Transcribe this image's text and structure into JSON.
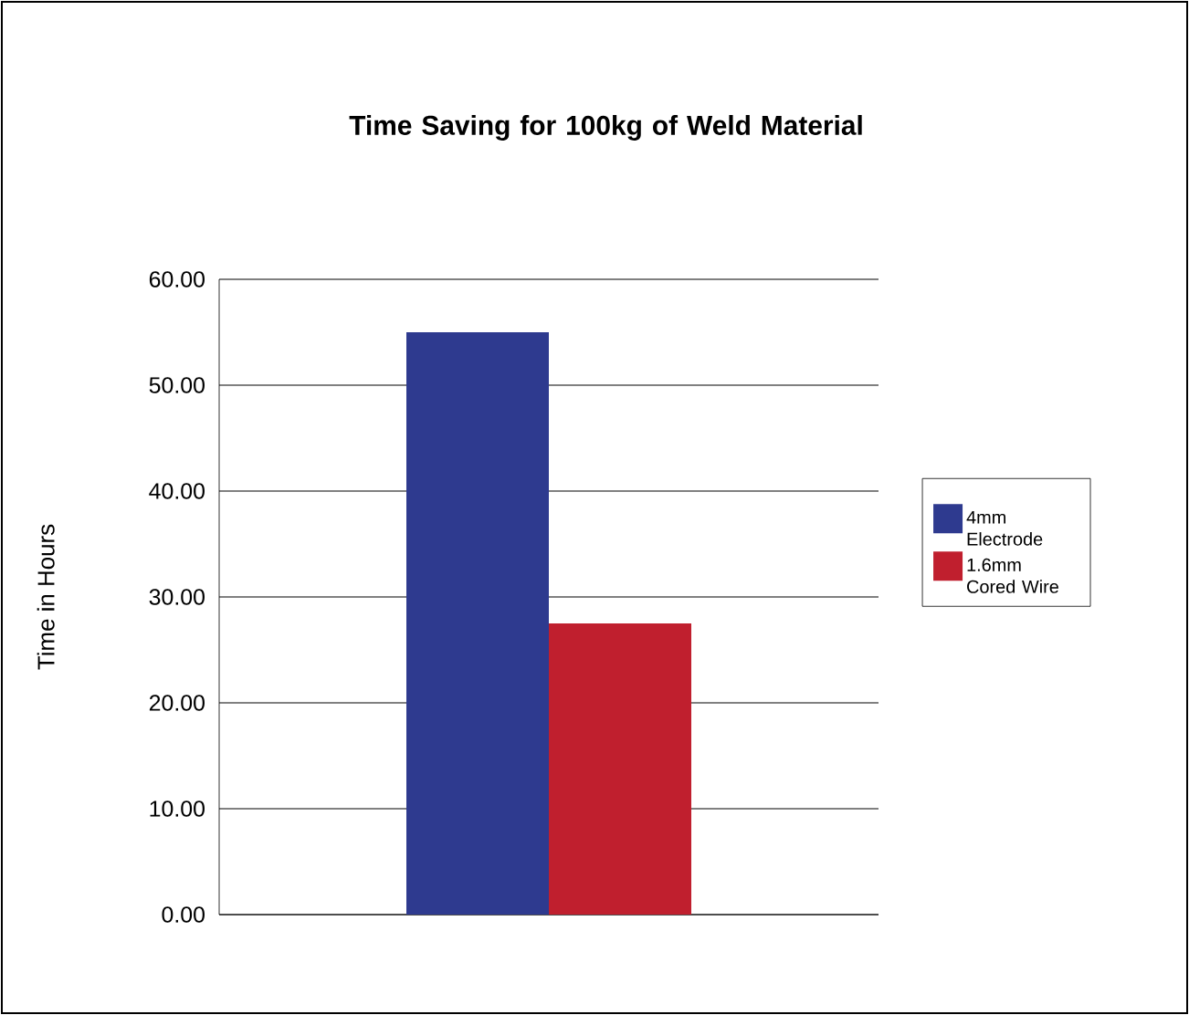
{
  "chart_data": {
    "type": "bar",
    "title": "Time Saving for 100kg of Weld Material",
    "ylabel": "Time in Hours",
    "categories": [
      null
    ],
    "series": [
      {
        "name": "4mm Electrode",
        "color": "#2e3a8f",
        "values": [
          55
        ]
      },
      {
        "name": "1.6mm Cored Wire",
        "color": "#c01f2e",
        "values": [
          27.5
        ]
      }
    ],
    "ylim": [
      0,
      60
    ],
    "yticks": [
      {
        "value": 0,
        "label": "0.00"
      },
      {
        "value": 10,
        "label": "10.00"
      },
      {
        "value": 20,
        "label": "20.00"
      },
      {
        "value": 30,
        "label": "30.00"
      },
      {
        "value": 40,
        "label": "40.00"
      },
      {
        "value": 50,
        "label": "50.00"
      },
      {
        "value": 60,
        "label": "60.00"
      }
    ],
    "grid": "y",
    "legend": "right"
  }
}
